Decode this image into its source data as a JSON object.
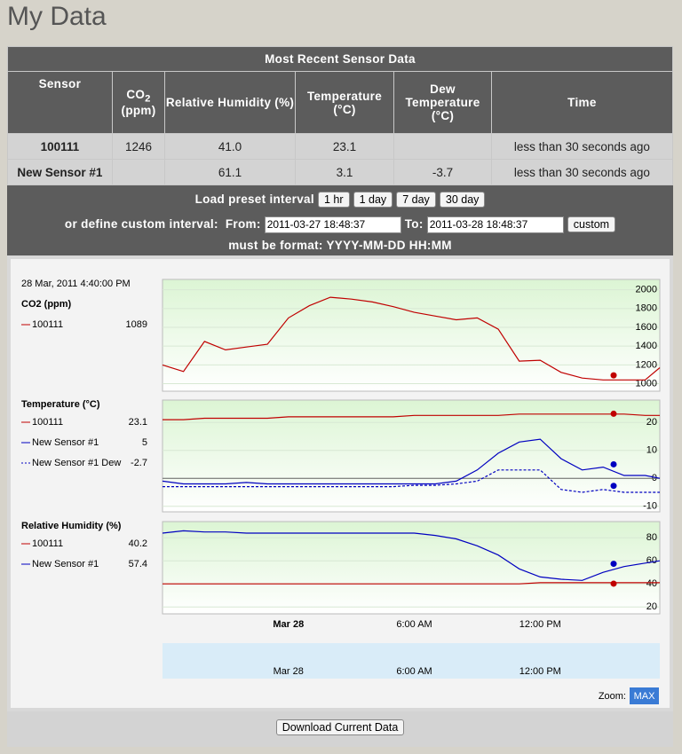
{
  "title": "My Data",
  "table": {
    "caption": "Most Recent Sensor Data",
    "headers": [
      "Sensor",
      {
        "main": "CO",
        "sub": "2",
        "unit": "(ppm)"
      },
      "Relative Humidity (%)",
      "Temperature (°C)",
      "Dew Temperature (°C)",
      "Time"
    ],
    "rows": [
      [
        "100111",
        "1246",
        "41.0",
        "23.1",
        null,
        "less than 30 seconds ago"
      ],
      [
        "New Sensor #1",
        null,
        "61.1",
        "3.1",
        "-3.7",
        "less than 30 seconds ago"
      ]
    ]
  },
  "interval": {
    "preset_label": "Load preset interval",
    "presets": [
      "1 hr",
      "1 day",
      "7 day",
      "30 day"
    ],
    "custom_label": "or define custom interval:",
    "from_label": "From:",
    "from": "2011-03-27 18:48:37",
    "to_label": "To:",
    "to": "2011-03-28 18:48:37",
    "button": "custom",
    "format_hint": "must be format: YYYY-MM-DD HH:MM"
  },
  "hover_time": "28 Mar, 2011 4:40:00 PM",
  "hover_x": 15.5,
  "chart_data": [
    {
      "type": "line",
      "title": "CO2 (ppm)",
      "xlim": [
        -6,
        17.7
      ],
      "ylim": [
        920,
        2110
      ],
      "yticks": [
        1000,
        1200,
        1400,
        1600,
        1800,
        2000
      ],
      "x": [
        -6,
        -5,
        -4,
        -3,
        -2,
        -1,
        0,
        1,
        2,
        3,
        4,
        5,
        6,
        7,
        8,
        9,
        10,
        11,
        12,
        13,
        14,
        15,
        16,
        17,
        17.7
      ],
      "series": [
        {
          "name": "100111",
          "color": "#c00000",
          "current": 1089,
          "values": [
            1200,
            1130,
            1450,
            1360,
            1390,
            1420,
            1700,
            1830,
            1920,
            1900,
            1870,
            1820,
            1760,
            1720,
            1680,
            1700,
            1580,
            1240,
            1250,
            1120,
            1060,
            1040,
            1040,
            1040,
            1170
          ]
        }
      ]
    },
    {
      "type": "line",
      "title": "Temperature (°C)",
      "xlim": [
        -6,
        17.7
      ],
      "ylim": [
        -12,
        28
      ],
      "yticks": [
        -10,
        0,
        10,
        20
      ],
      "x": [
        -6,
        -5,
        -4,
        -3,
        -2,
        -1,
        0,
        1,
        2,
        3,
        4,
        5,
        6,
        7,
        8,
        9,
        10,
        11,
        12,
        13,
        14,
        15,
        16,
        17,
        17.7
      ],
      "series": [
        {
          "name": "100111",
          "color": "#c00000",
          "current": 23.1,
          "values": [
            21,
            21,
            21.5,
            21.5,
            21.5,
            21.5,
            22,
            22,
            22,
            22,
            22,
            22,
            22.5,
            22.5,
            22.5,
            22.5,
            22.5,
            23,
            23,
            23,
            23,
            23,
            23,
            22.5,
            22.5
          ]
        },
        {
          "name": "New Sensor #1",
          "color": "#0000c0",
          "current": 5,
          "values": [
            -1,
            -2,
            -2,
            -2,
            -1.5,
            -2,
            -2,
            -2,
            -2,
            -2,
            -2,
            -2,
            -2,
            -2,
            -1,
            3,
            9,
            13,
            14,
            7,
            3,
            4,
            1,
            1,
            0
          ]
        },
        {
          "name": "New Sensor #1 Dew",
          "color": "#0000c0",
          "dashed": true,
          "current": -2.7,
          "values": [
            -3,
            -3,
            -3,
            -3,
            -3,
            -3,
            -3,
            -3,
            -3,
            -3,
            -3,
            -3,
            -2.5,
            -2.5,
            -2,
            -1,
            3,
            3,
            3,
            -4,
            -5,
            -4,
            -5,
            -5,
            -5
          ]
        }
      ]
    },
    {
      "type": "line",
      "title": "Relative Humidity (%)",
      "xlim": [
        -6,
        17.7
      ],
      "ylim": [
        14,
        94
      ],
      "yticks": [
        20,
        40,
        60,
        80
      ],
      "xticks": [
        {
          "value": 0,
          "label": "Mar 28"
        },
        {
          "value": 6,
          "label": "6:00 AM"
        },
        {
          "value": 12,
          "label": "12:00 PM"
        }
      ],
      "x": [
        -6,
        -5,
        -4,
        -3,
        -2,
        -1,
        0,
        1,
        2,
        3,
        4,
        5,
        6,
        7,
        8,
        9,
        10,
        11,
        12,
        13,
        14,
        15,
        16,
        17,
        17.7
      ],
      "series": [
        {
          "name": "100111",
          "color": "#c00000",
          "current": 40.2,
          "values": [
            40,
            40,
            40,
            40,
            40,
            40,
            40,
            40,
            40,
            40,
            40,
            40,
            40,
            40,
            40,
            40,
            40,
            40,
            41,
            41,
            41,
            41,
            41,
            41,
            41
          ]
        },
        {
          "name": "New Sensor #1",
          "color": "#0000c0",
          "current": 57.4,
          "values": [
            84,
            86,
            85,
            85,
            84,
            84,
            84,
            84,
            84,
            84,
            84,
            84,
            84,
            82,
            79,
            73,
            65,
            53,
            46,
            44,
            43,
            50,
            55,
            58,
            60
          ]
        }
      ]
    }
  ],
  "zoom_label": "Zoom:",
  "zoom_button": "MAX",
  "download_button": "Download Current Data"
}
